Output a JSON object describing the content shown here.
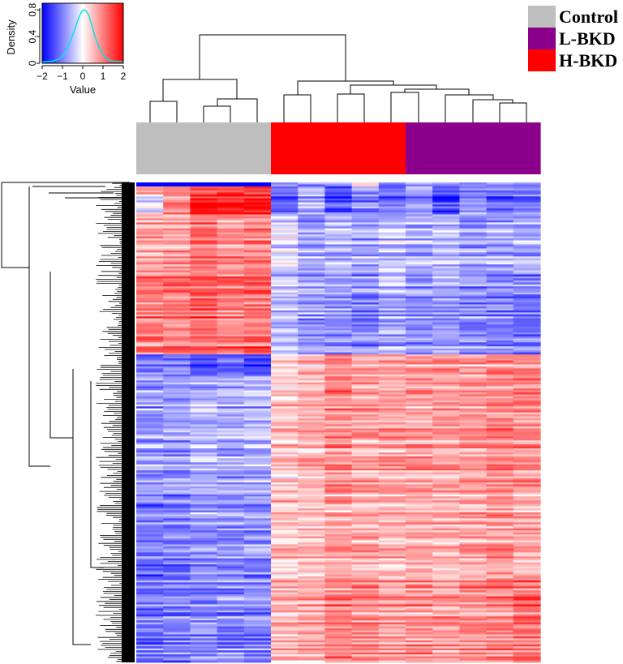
{
  "chart_data": {
    "type": "heatmap",
    "title": "",
    "groups": [
      {
        "name": "Control",
        "color": "#bebebe",
        "n_samples": 5
      },
      {
        "name": "H-BKD",
        "color": "#ff0000",
        "n_samples": 5
      },
      {
        "name": "L-BKD",
        "color": "#8b008b",
        "n_samples": 5
      }
    ],
    "sample_order": [
      "Control",
      "Control",
      "Control",
      "Control",
      "Control",
      "H-BKD",
      "H-BKD",
      "H-BKD",
      "H-BKD",
      "H-BKD",
      "L-BKD",
      "L-BKD",
      "L-BKD",
      "L-BKD",
      "L-BKD"
    ],
    "color_scale": {
      "min": -2,
      "max": 2,
      "low_color": "#0000ff",
      "mid_color": "#ffffff",
      "high_color": "#ff0000"
    },
    "row_blocks": [
      {
        "rows": 2,
        "values": [
          -2,
          -2,
          -2,
          -2,
          -2,
          -0.7,
          -0.8,
          -0.6,
          0.4,
          -0.8,
          -0.7,
          -0.8,
          -0.7,
          -0.6,
          -0.6
        ]
      },
      {
        "rows": 4,
        "values": [
          1.0,
          1.0,
          1.5,
          1.6,
          1.6,
          -1.1,
          -0.6,
          -1.4,
          -0.9,
          -1.1,
          -0.6,
          -1.3,
          -0.8,
          -1.0,
          -0.9
        ]
      },
      {
        "rows": 10,
        "values": [
          -0.2,
          1.0,
          1.8,
          1.7,
          1.9,
          -1.4,
          -0.8,
          -1.5,
          -1.1,
          -1.2,
          -0.9,
          -1.6,
          -1.0,
          -1.3,
          -1.2
        ]
      },
      {
        "rows": 30,
        "values": [
          0.8,
          0.8,
          1.1,
          0.9,
          1.0,
          -0.2,
          -0.7,
          -0.5,
          -0.6,
          -0.4,
          -0.6,
          -0.5,
          -0.7,
          -0.6,
          -0.6
        ]
      },
      {
        "rows": 40,
        "values": [
          1.0,
          1.0,
          1.3,
          1.1,
          1.2,
          -0.5,
          -0.8,
          -0.8,
          -0.9,
          -0.6,
          -0.8,
          -0.7,
          -0.9,
          -1.0,
          -1.0
        ]
      },
      {
        "rows": 10,
        "values": [
          -1.3,
          -1.2,
          -1.6,
          -1.4,
          -1.6,
          0.2,
          0.5,
          0.9,
          0.7,
          0.6,
          0.7,
          0.8,
          0.6,
          0.9,
          0.7
        ]
      },
      {
        "rows": 60,
        "values": [
          -0.8,
          -0.8,
          -0.6,
          -0.7,
          -0.6,
          0.4,
          0.6,
          0.9,
          0.7,
          0.7,
          0.8,
          0.7,
          0.8,
          0.9,
          0.9
        ]
      },
      {
        "rows": 40,
        "values": [
          -1.0,
          -1.0,
          -0.8,
          -0.9,
          -0.8,
          0.5,
          0.5,
          0.7,
          0.6,
          0.6,
          0.7,
          0.6,
          0.7,
          0.8,
          0.7
        ]
      },
      {
        "rows": 44,
        "values": [
          -1.1,
          -1.0,
          -0.9,
          -0.9,
          -0.9,
          0.6,
          0.7,
          1.0,
          0.9,
          0.8,
          0.9,
          0.8,
          0.9,
          1.0,
          1.1
        ]
      }
    ],
    "color_key": {
      "xlabel": "Value",
      "ylabel": "Density",
      "xticks": [
        "−2",
        "−1",
        "0",
        "1",
        "2"
      ],
      "yticks": [
        "0",
        "0.4",
        "0.8"
      ],
      "density_curve": [
        [
          -2,
          0.02
        ],
        [
          -1.5,
          0.03
        ],
        [
          -1.2,
          0.06
        ],
        [
          -1,
          0.1
        ],
        [
          -0.8,
          0.2
        ],
        [
          -0.6,
          0.34
        ],
        [
          -0.4,
          0.5
        ],
        [
          -0.2,
          0.68
        ],
        [
          -0.05,
          0.78
        ],
        [
          0.05,
          0.8
        ],
        [
          0.15,
          0.79
        ],
        [
          0.3,
          0.72
        ],
        [
          0.45,
          0.56
        ],
        [
          0.6,
          0.4
        ],
        [
          0.8,
          0.24
        ],
        [
          1,
          0.13
        ],
        [
          1.2,
          0.06
        ],
        [
          1.5,
          0.03
        ],
        [
          2,
          0.02
        ]
      ]
    }
  }
}
